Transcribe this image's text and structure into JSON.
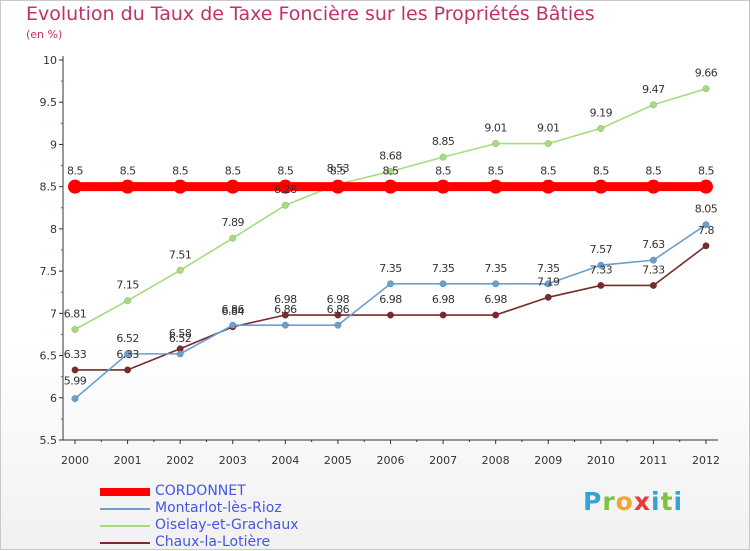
{
  "chart_data": {
    "type": "line",
    "title": "Evolution du Taux de Taxe Foncière sur les Propriétés Bâties",
    "ylabel": "(en %)",
    "xlabel": "",
    "ylim": [
      5.5,
      10
    ],
    "yticks": [
      "5.5",
      "6",
      "6.5",
      "7",
      "7.5",
      "8",
      "8.5",
      "9",
      "9.5",
      "10"
    ],
    "categories": [
      "2000",
      "2001",
      "2002",
      "2003",
      "2004",
      "2005",
      "2006",
      "2007",
      "2008",
      "2009",
      "2010",
      "2011",
      "2012"
    ],
    "series": [
      {
        "name": "CORDONNET",
        "color": "#ff0000",
        "values": [
          8.5,
          8.5,
          8.5,
          8.5,
          8.5,
          8.5,
          8.5,
          8.5,
          8.5,
          8.5,
          8.5,
          8.5,
          8.5
        ],
        "labels": [
          "8.5",
          "8.5",
          "8.5",
          "8.5",
          "8.5",
          "8.5",
          "8.5",
          "8.5",
          "8.5",
          "8.5",
          "8.5",
          "8.5",
          "8.5"
        ]
      },
      {
        "name": "Montarlot-lès-Rioz",
        "color": "#6a9fd0",
        "values": [
          5.99,
          6.52,
          6.52,
          6.86,
          6.86,
          6.86,
          7.35,
          7.35,
          7.35,
          7.35,
          7.57,
          7.63,
          8.05
        ],
        "labels": [
          "5.99",
          "6.52",
          "6.52",
          "6.86",
          "6.86",
          "6.86",
          "7.35",
          "7.35",
          "7.35",
          "7.35",
          "7.57",
          "7.63",
          "8.05"
        ]
      },
      {
        "name": "Oiselay-et-Grachaux",
        "color": "#a5dd7e",
        "values": [
          6.81,
          7.15,
          7.51,
          7.89,
          8.28,
          8.53,
          8.68,
          8.85,
          9.01,
          9.01,
          9.19,
          9.47,
          9.66
        ],
        "labels": [
          "6.81",
          "7.15",
          "7.51",
          "7.89",
          "8.28",
          "8.53",
          "8.68",
          "8.85",
          "9.01",
          "9.01",
          "9.19",
          "9.47",
          "9.66"
        ]
      },
      {
        "name": "Chaux-la-Lotière",
        "color": "#7a2a2a",
        "values": [
          6.33,
          6.33,
          6.58,
          6.84,
          6.98,
          6.98,
          6.98,
          6.98,
          6.98,
          7.19,
          7.33,
          7.33,
          7.8
        ],
        "labels": [
          "6.33",
          "6.33",
          "6.58",
          "6.84",
          "6.98",
          "6.98",
          "6.98",
          "6.98",
          "6.98",
          "7.19",
          "7.33",
          "7.33",
          "7.8"
        ]
      }
    ],
    "legend": "bottom-left",
    "grid": false
  },
  "logo": {
    "text": "Proxiti"
  }
}
